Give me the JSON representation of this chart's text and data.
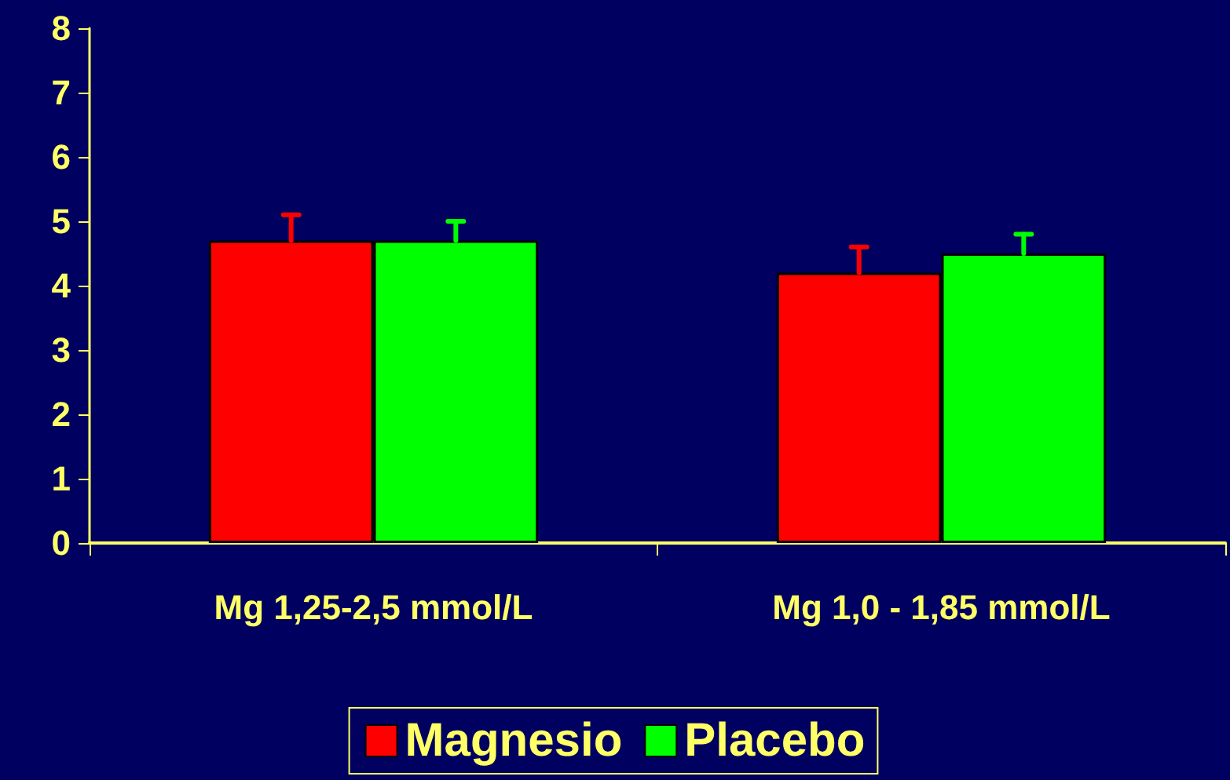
{
  "chart_data": {
    "type": "bar",
    "categories": [
      "Mg 1,25-2,5 mmol/L",
      "Mg 1,0 - 1,85 mmol/L"
    ],
    "series": [
      {
        "name": "Magnesio",
        "color": "#ff0000",
        "values": [
          4.7,
          4.2
        ],
        "errors": [
          [
            4.7,
            5.1
          ],
          [
            4.2,
            4.6
          ]
        ]
      },
      {
        "name": "Placebo",
        "color": "#00ff00",
        "values": [
          4.7,
          4.5
        ],
        "errors": [
          [
            4.7,
            5.0
          ],
          [
            4.5,
            4.8
          ]
        ]
      }
    ],
    "ylim": [
      0,
      8
    ],
    "yticks": [
      0,
      1,
      2,
      3,
      4,
      5,
      6,
      7,
      8
    ],
    "grid": false,
    "legend": "bottom"
  }
}
